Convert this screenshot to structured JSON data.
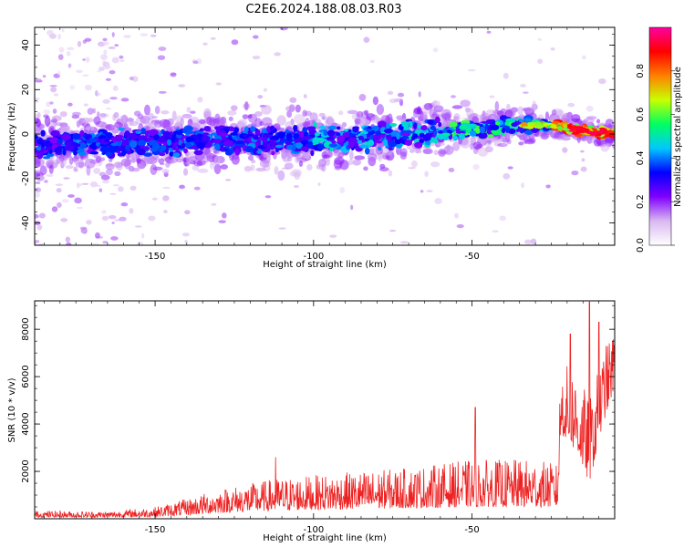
{
  "title": "C2E6.2024.188.08.03.R03",
  "chart_data": [
    {
      "type": "heatmap",
      "xlabel": "Height of straight line (km)",
      "ylabel": "Frequency (Hz)",
      "xlim": [
        -188,
        -5
      ],
      "ylim": [
        -50,
        48
      ],
      "xticks": [
        -150,
        -100,
        -50
      ],
      "yticks": [
        -40,
        -20,
        0,
        20,
        40
      ],
      "ridge": [
        {
          "x": -185,
          "y": -5
        },
        {
          "x": -170,
          "y": -4
        },
        {
          "x": -160,
          "y": -4
        },
        {
          "x": -150,
          "y": -4
        },
        {
          "x": -130,
          "y": -3
        },
        {
          "x": -110,
          "y": -3
        },
        {
          "x": -90,
          "y": -2
        },
        {
          "x": -70,
          "y": 0
        },
        {
          "x": -50,
          "y": 2
        },
        {
          "x": -35,
          "y": 4
        },
        {
          "x": -25,
          "y": 4
        },
        {
          "x": -15,
          "y": 2
        },
        {
          "x": -7,
          "y": 0
        }
      ],
      "colorbar": {
        "label": "Normalized spectral amplitude",
        "range": [
          0.0,
          1.0
        ],
        "ticks": [
          "0.0",
          "0.2",
          "0.4",
          "0.6",
          "0.8"
        ],
        "stops": [
          "#ffffff",
          "#d9b8f0",
          "#8000ff",
          "#0000ff",
          "#00c8ff",
          "#00ff60",
          "#c8ff00",
          "#ff8000",
          "#ff0000",
          "#ff00a0"
        ]
      }
    },
    {
      "type": "line",
      "xlabel": "Height of straight line (km)",
      "ylabel": "SNR (10 * v/v)",
      "xlim": [
        -188,
        -5
      ],
      "ylim": [
        0,
        9200
      ],
      "xticks": [
        -150,
        -100,
        -50
      ],
      "yticks": [
        2000,
        4000,
        6000,
        8000
      ],
      "color": "#ee2222",
      "envelope": [
        {
          "x": -188,
          "base": 60,
          "amp": 280
        },
        {
          "x": -165,
          "base": 60,
          "amp": 250
        },
        {
          "x": -150,
          "base": 80,
          "amp": 420
        },
        {
          "x": -140,
          "base": 150,
          "amp": 700
        },
        {
          "x": -130,
          "base": 250,
          "amp": 1000
        },
        {
          "x": -112,
          "base": 350,
          "amp": 1350
        },
        {
          "x": -90,
          "base": 400,
          "amp": 1550
        },
        {
          "x": -70,
          "base": 450,
          "amp": 1700
        },
        {
          "x": -50,
          "base": 500,
          "amp": 2000
        },
        {
          "x": -30,
          "base": 500,
          "amp": 2000
        },
        {
          "x": -23,
          "base": 500,
          "amp": 1800
        },
        {
          "x": -22,
          "base": 3600,
          "amp": 3000
        },
        {
          "x": -17,
          "base": 2800,
          "amp": 3500
        },
        {
          "x": -13,
          "base": 1500,
          "amp": 3500
        },
        {
          "x": -8,
          "base": 4300,
          "amp": 3000
        },
        {
          "x": -5,
          "base": 5500,
          "amp": 2500
        }
      ],
      "spikes": [
        {
          "x": -112,
          "y": 2600
        },
        {
          "x": -49,
          "y": 4700
        },
        {
          "x": -19,
          "y": 7800
        },
        {
          "x": -13,
          "y": 9150
        },
        {
          "x": -10,
          "y": 8300
        }
      ]
    }
  ]
}
